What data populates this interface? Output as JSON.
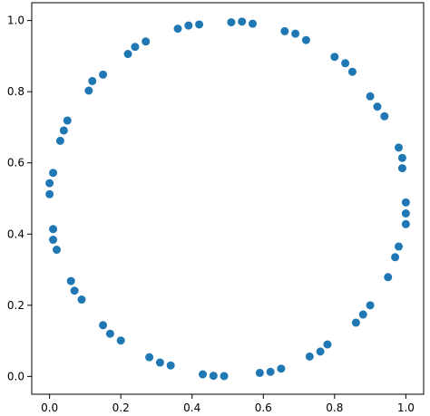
{
  "chart_data": {
    "type": "scatter",
    "title": "",
    "xlabel": "",
    "ylabel": "",
    "xlim": [
      -0.05,
      1.05
    ],
    "ylim": [
      -0.05,
      1.05
    ],
    "grid": false,
    "legend": "none",
    "marker_color": "#1f77b4",
    "x_ticks": [
      "0.0",
      "0.2",
      "0.4",
      "0.6",
      "0.8",
      "1.0"
    ],
    "y_ticks": [
      "0.0",
      "0.2",
      "0.4",
      "0.6",
      "0.8",
      "1.0"
    ],
    "series": [
      {
        "points": [
          [
            0.51,
            0.995
          ],
          [
            0.54,
            0.997
          ],
          [
            0.57,
            0.991
          ],
          [
            0.36,
            0.977
          ],
          [
            0.39,
            0.986
          ],
          [
            0.42,
            0.989
          ],
          [
            0.66,
            0.97
          ],
          [
            0.69,
            0.963
          ],
          [
            0.72,
            0.945
          ],
          [
            0.22,
            0.906
          ],
          [
            0.24,
            0.926
          ],
          [
            0.27,
            0.941
          ],
          [
            0.8,
            0.898
          ],
          [
            0.83,
            0.88
          ],
          [
            0.85,
            0.856
          ],
          [
            0.11,
            0.803
          ],
          [
            0.12,
            0.83
          ],
          [
            0.15,
            0.848
          ],
          [
            0.9,
            0.787
          ],
          [
            0.92,
            0.758
          ],
          [
            0.94,
            0.731
          ],
          [
            0.05,
            0.719
          ],
          [
            0.04,
            0.691
          ],
          [
            0.03,
            0.662
          ],
          [
            0.98,
            0.643
          ],
          [
            0.99,
            0.614
          ],
          [
            0.99,
            0.585
          ],
          [
            0.01,
            0.572
          ],
          [
            0.0,
            0.543
          ],
          [
            0.0,
            0.512
          ],
          [
            1.0,
            0.489
          ],
          [
            1.0,
            0.458
          ],
          [
            1.0,
            0.428
          ],
          [
            0.01,
            0.414
          ],
          [
            0.01,
            0.384
          ],
          [
            0.02,
            0.356
          ],
          [
            0.98,
            0.365
          ],
          [
            0.97,
            0.335
          ],
          [
            0.95,
            0.279
          ],
          [
            0.06,
            0.268
          ],
          [
            0.07,
            0.241
          ],
          [
            0.09,
            0.216
          ],
          [
            0.9,
            0.2
          ],
          [
            0.88,
            0.174
          ],
          [
            0.86,
            0.151
          ],
          [
            0.15,
            0.144
          ],
          [
            0.17,
            0.12
          ],
          [
            0.2,
            0.101
          ],
          [
            0.78,
            0.09
          ],
          [
            0.76,
            0.07
          ],
          [
            0.73,
            0.056
          ],
          [
            0.28,
            0.054
          ],
          [
            0.31,
            0.039
          ],
          [
            0.34,
            0.031
          ],
          [
            0.65,
            0.022
          ],
          [
            0.62,
            0.013
          ],
          [
            0.59,
            0.01
          ],
          [
            0.43,
            0.006
          ],
          [
            0.46,
            0.002
          ],
          [
            0.49,
            0.001
          ]
        ]
      }
    ]
  }
}
